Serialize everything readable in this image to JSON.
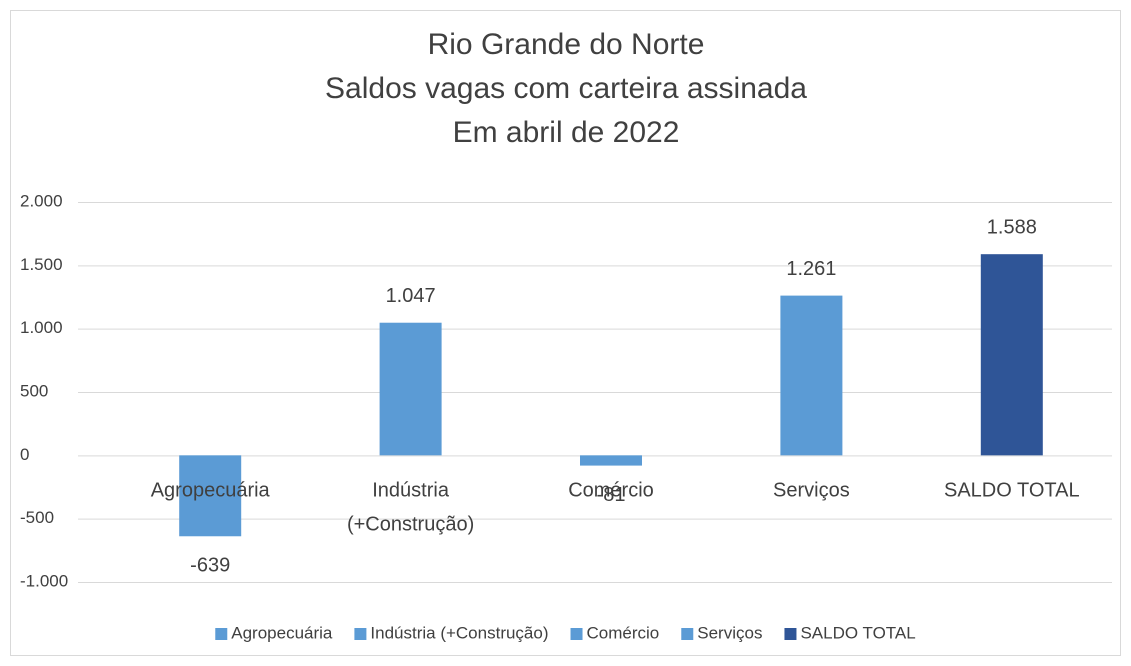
{
  "chart_data": {
    "type": "bar",
    "title": [
      "Rio Grande do Norte",
      "Saldos vagas com carteira assinada",
      "Em abril de 2022"
    ],
    "categories": [
      "Agropecuária",
      "Indústria (+Construção)",
      "Comércio",
      "Serviços",
      "SALDO TOTAL"
    ],
    "values": [
      -639,
      1047,
      -81,
      1261,
      1588
    ],
    "value_labels": [
      "-639",
      "1.047",
      "-81",
      "1.261",
      "1.588"
    ],
    "colors": [
      "#5b9bd5",
      "#5b9bd5",
      "#5b9bd5",
      "#5b9bd5",
      "#2f5597"
    ],
    "ylim": [
      -1000,
      2000
    ],
    "yticks": [
      {
        "value": -1000,
        "label": "-1.000"
      },
      -500,
      0,
      500,
      {
        "value": 1000,
        "label": "1.000"
      },
      {
        "value": 1500,
        "label": "1.500"
      },
      {
        "value": 2000,
        "label": "2.000"
      }
    ],
    "grid": true,
    "legend": "bottom"
  }
}
